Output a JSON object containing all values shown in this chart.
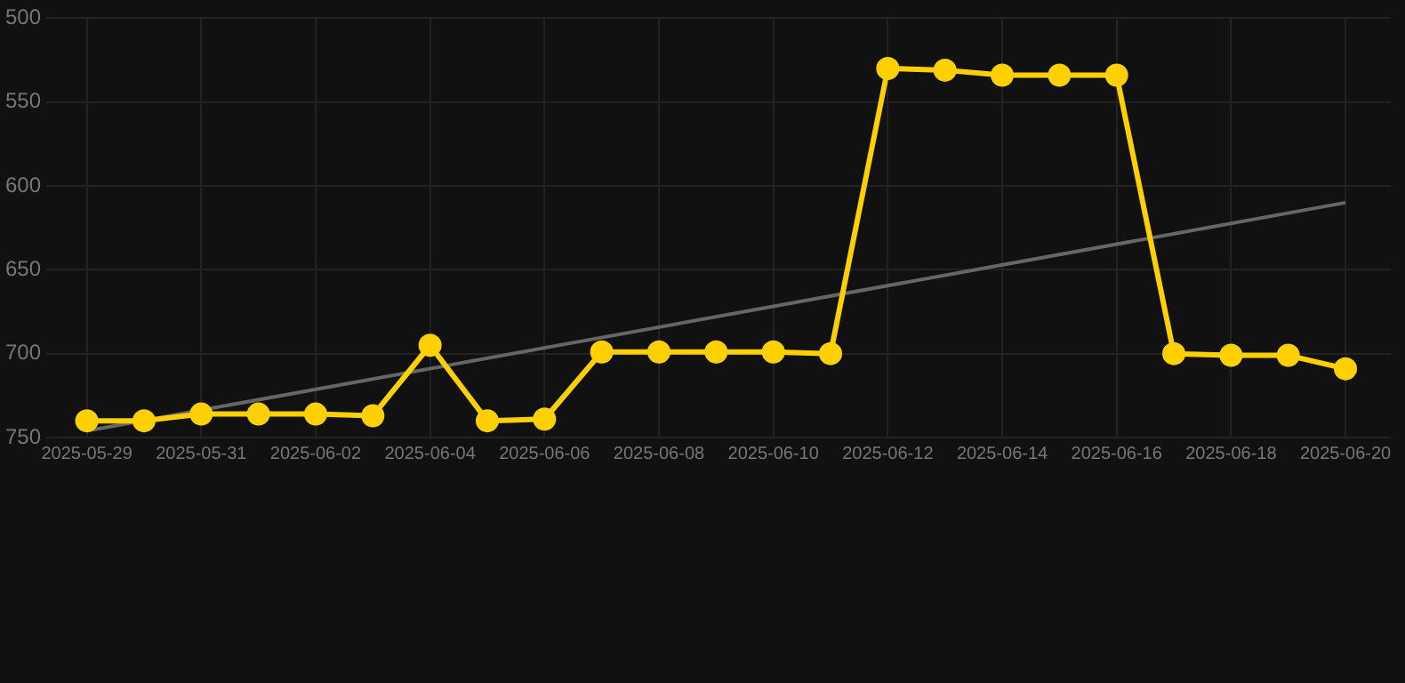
{
  "chart_data": {
    "type": "line",
    "x": [
      "2025-05-29",
      "2025-05-30",
      "2025-05-31",
      "2025-06-01",
      "2025-06-02",
      "2025-06-03",
      "2025-06-04",
      "2025-06-05",
      "2025-06-06",
      "2025-06-07",
      "2025-06-08",
      "2025-06-09",
      "2025-06-10",
      "2025-06-11",
      "2025-06-12",
      "2025-06-13",
      "2025-06-14",
      "2025-06-15",
      "2025-06-16",
      "2025-06-17",
      "2025-06-18",
      "2025-06-19",
      "2025-06-20"
    ],
    "series": [
      {
        "type": "line",
        "color": "#ffd000",
        "marker": "circle",
        "values": [
          740,
          740,
          736,
          736,
          736,
          737,
          695,
          740,
          739,
          699,
          699,
          699,
          699,
          700,
          530,
          531,
          534,
          534,
          534,
          700,
          701,
          701,
          709
        ]
      },
      {
        "type": "line",
        "color": "#666666",
        "marker": "none",
        "x": [
          "2025-05-29",
          "2025-06-20"
        ],
        "values": [
          746,
          610
        ]
      }
    ],
    "ylim": [
      750,
      500
    ],
    "yticks": [
      500,
      550,
      600,
      650,
      700,
      750
    ],
    "xlim": [
      "2025-05-28T07:00",
      "2025-06-20T19:00"
    ],
    "xticks": [
      "2025-05-29",
      "2025-05-31",
      "2025-06-02",
      "2025-06-04",
      "2025-06-06",
      "2025-06-08",
      "2025-06-10",
      "2025-06-12",
      "2025-06-14",
      "2025-06-16",
      "2025-06-18",
      "2025-06-20"
    ],
    "grid": true,
    "legend": false,
    "line_style": "solid"
  }
}
